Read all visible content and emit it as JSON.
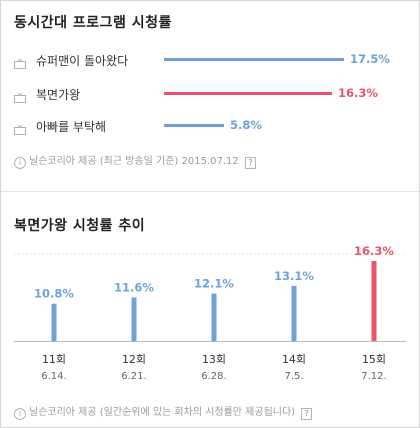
{
  "section1": {
    "title": "동시간대 프로그램 시청률",
    "source": "닐슨코리아 제공 (최근 방송일 기준) 2015.07.12"
  },
  "section2": {
    "title": "복면가왕 시청률 추이",
    "source": "닐슨코리아 제공 (일간순위에 있는 회차의 시청률만 제공됩니다)"
  },
  "colors": {
    "blue": "#6fa3d8",
    "red": "#e8546c"
  },
  "chart_data": [
    {
      "type": "bar",
      "orientation": "horizontal",
      "title": "동시간대 프로그램 시청률",
      "categories": [
        "슈퍼맨이 돌아왔다",
        "복면가왕",
        "아빠를 부탁해"
      ],
      "values": [
        17.5,
        16.3,
        5.8
      ],
      "value_labels": [
        "17.5%",
        "16.3%",
        "5.8%"
      ],
      "highlight_index": 1
    },
    {
      "type": "bar",
      "title": "복면가왕 시청률 추이",
      "categories": [
        "11회",
        "12회",
        "13회",
        "14회",
        "15회"
      ],
      "dates": [
        "6.14.",
        "6.21.",
        "6.28.",
        "7.5.",
        "7.12."
      ],
      "values": [
        10.8,
        11.6,
        12.1,
        13.1,
        16.3
      ],
      "value_labels": [
        "10.8%",
        "11.6%",
        "12.1%",
        "13.1%",
        "16.3%"
      ],
      "highlight_index": 4,
      "grid": false
    }
  ]
}
